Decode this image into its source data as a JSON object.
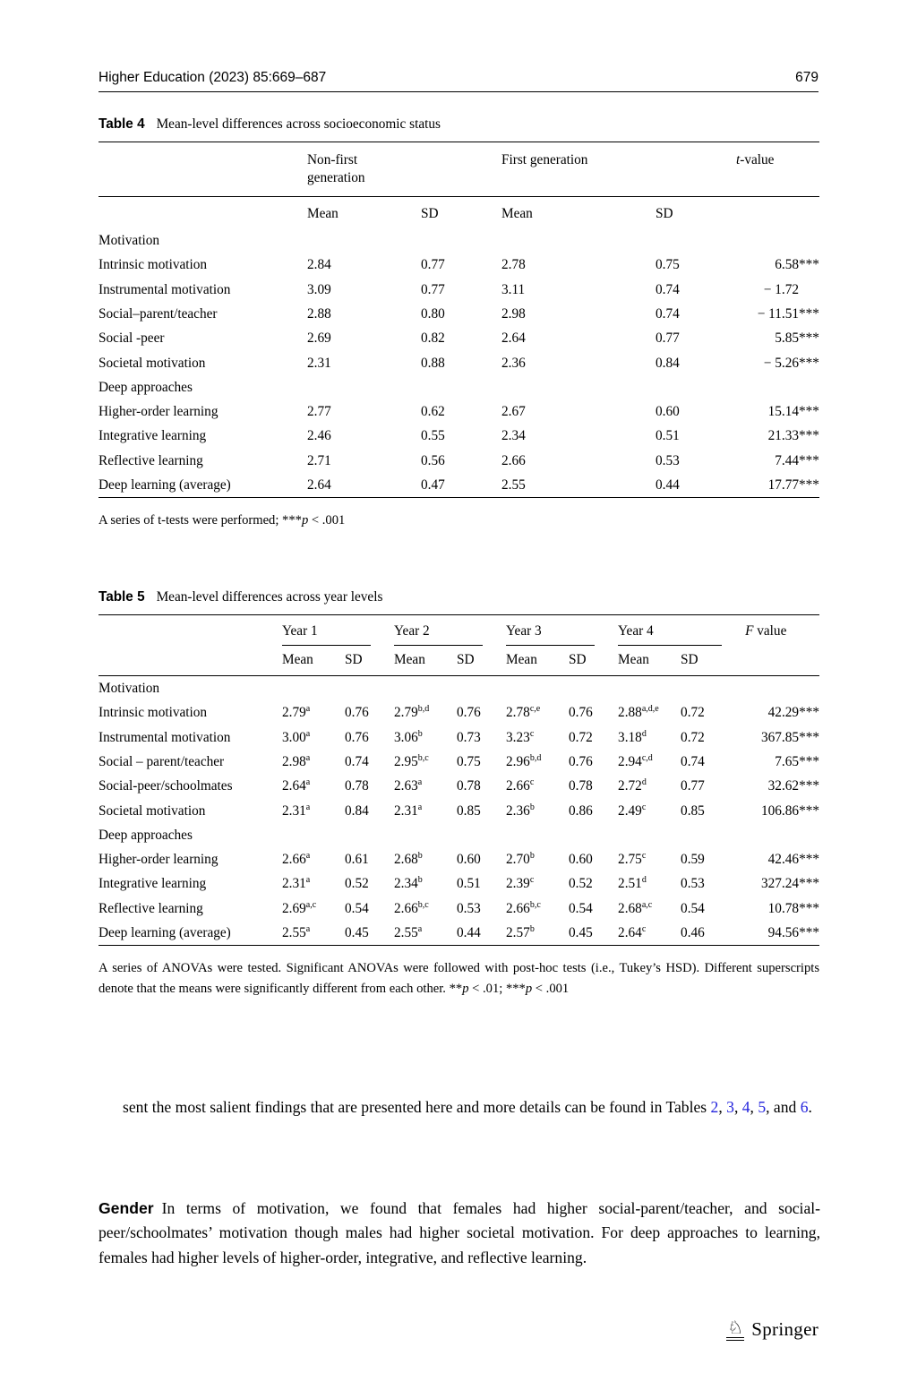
{
  "colors": {
    "link": "#2424dd",
    "text": "#000000"
  },
  "header": {
    "journal": "Higher Education (2023) 85:669–687",
    "page_number": "679"
  },
  "table4": {
    "caption_label": "Table 4",
    "caption_text": "Mean-level differences across socioeconomic status",
    "group_headers": [
      "Non-first generation",
      "First generation"
    ],
    "stat_header": {
      "italic": "t",
      "rest": "-value"
    },
    "sub_headers": [
      "Mean",
      "SD",
      "Mean",
      "SD"
    ],
    "rows": [
      {
        "group": true,
        "label": "Motivation"
      },
      {
        "label": "Intrinsic motivation",
        "cells": [
          "2.84",
          "0.77",
          "2.78",
          "0.75"
        ],
        "stat": "6.58***"
      },
      {
        "label": "Instrumental motivation",
        "cells": [
          "3.09",
          "0.77",
          "3.11",
          "0.74"
        ],
        "stat": "− 1.72"
      },
      {
        "label": "Social–parent/teacher",
        "cells": [
          "2.88",
          "0.80",
          "2.98",
          "0.74"
        ],
        "stat": "− 11.51***"
      },
      {
        "label": "Social -peer",
        "cells": [
          "2.69",
          "0.82",
          "2.64",
          "0.77"
        ],
        "stat": "5.85***"
      },
      {
        "label": "Societal motivation",
        "cells": [
          "2.31",
          "0.88",
          "2.36",
          "0.84"
        ],
        "stat": "− 5.26***"
      },
      {
        "group": true,
        "label": "Deep approaches"
      },
      {
        "label": "Higher-order learning",
        "cells": [
          "2.77",
          "0.62",
          "2.67",
          "0.60"
        ],
        "stat": "15.14***"
      },
      {
        "label": "Integrative learning",
        "cells": [
          "2.46",
          "0.55",
          "2.34",
          "0.51"
        ],
        "stat": "21.33***"
      },
      {
        "label": "Reflective learning",
        "cells": [
          "2.71",
          "0.56",
          "2.66",
          "0.53"
        ],
        "stat": "7.44***"
      },
      {
        "label": "Deep learning (average)",
        "cells": [
          "2.64",
          "0.47",
          "2.55",
          "0.44"
        ],
        "stat": "17.77***"
      }
    ],
    "note": [
      {
        "t": "A series of t-tests were performed; ***"
      },
      {
        "t": "p",
        "i": true
      },
      {
        "t": " < .001"
      }
    ]
  },
  "table5": {
    "caption_label": "Table 5",
    "caption_text": "Mean-level differences across year levels",
    "year_headers": [
      "Year 1",
      "Year 2",
      "Year 3",
      "Year 4"
    ],
    "stat_header": {
      "italic": "F",
      "rest": " value"
    },
    "sub_headers": [
      "Mean",
      "SD",
      "Mean",
      "SD",
      "Mean",
      "SD",
      "Mean",
      "SD"
    ],
    "rows": [
      {
        "group": true,
        "label": "Motivation"
      },
      {
        "label": "Intrinsic motivation",
        "cells": [
          "2.79^a",
          "0.76",
          "2.79^b,d",
          "0.76",
          "2.78^c,e",
          "0.76",
          "2.88^a,d,e",
          "0.72"
        ],
        "stat": "42.29***"
      },
      {
        "label": "Instrumental motivation",
        "cells": [
          "3.00^a",
          "0.76",
          "3.06^b",
          "0.73",
          "3.23^c",
          "0.72",
          "3.18^d",
          "0.72"
        ],
        "stat": "367.85***"
      },
      {
        "label": "Social – parent/teacher",
        "cells": [
          "2.98^a",
          "0.74",
          "2.95^b,c",
          "0.75",
          "2.96^b,d",
          "0.76",
          "2.94^c,d",
          "0.74"
        ],
        "stat": "7.65***"
      },
      {
        "label": "Social-peer/schoolmates",
        "cells": [
          "2.64^a",
          "0.78",
          "2.63^a",
          "0.78",
          "2.66^c",
          "0.78",
          "2.72^d",
          "0.77"
        ],
        "stat": "32.62***"
      },
      {
        "label": "Societal motivation",
        "cells": [
          "2.31^a",
          "0.84",
          "2.31^a",
          "0.85",
          "2.36^b",
          "0.86",
          "2.49^c",
          "0.85"
        ],
        "stat": "106.86***"
      },
      {
        "group": true,
        "label": "Deep approaches"
      },
      {
        "label": "Higher-order learning",
        "cells": [
          "2.66^a",
          "0.61",
          "2.68^b",
          "0.60",
          "2.70^b",
          "0.60",
          "2.75^c",
          "0.59"
        ],
        "stat": "42.46***"
      },
      {
        "label": "Integrative learning",
        "cells": [
          "2.31^a",
          "0.52",
          "2.34^b",
          "0.51",
          "2.39^c",
          "0.52",
          "2.51^d",
          "0.53"
        ],
        "stat": "327.24***"
      },
      {
        "label": "Reflective learning",
        "cells": [
          "2.69^a,c",
          "0.54",
          "2.66^b,c",
          "0.53",
          "2.66^b,c",
          "0.54",
          "2.68^a,c",
          "0.54"
        ],
        "stat": "10.78***"
      },
      {
        "label": "Deep learning (average)",
        "cells": [
          "2.55^a",
          "0.45",
          "2.55^a",
          "0.44",
          "2.57^b",
          "0.45",
          "2.64^c",
          "0.46"
        ],
        "stat": "94.56***"
      }
    ],
    "note": [
      {
        "t": "A series of ANOVAs were tested. Significant ANOVAs were followed with post-hoc tests (i.e., Tukey’s HSD). Different superscripts denote that the means were significantly different from each other. **"
      },
      {
        "t": "p",
        "i": true
      },
      {
        "t": " < .01; ***"
      },
      {
        "t": "p",
        "i": true
      },
      {
        "t": " < .001"
      }
    ]
  },
  "body_text": {
    "continuation": [
      {
        "t": "sent the most salient findings that are presented here and more details can be found in Tables "
      },
      {
        "t": "2",
        "link": true
      },
      {
        "t": ", "
      },
      {
        "t": "3",
        "link": true
      },
      {
        "t": ", "
      },
      {
        "t": "4",
        "link": true
      },
      {
        "t": ", "
      },
      {
        "t": "5",
        "link": true
      },
      {
        "t": ", and "
      },
      {
        "t": "6",
        "link": true
      },
      {
        "t": "."
      }
    ]
  },
  "gender": {
    "heading": "Gender",
    "text": "In terms of motivation, we found that females had higher social-parent/teacher, and social-peer/schoolmates’ motivation though males had higher societal motivation. For deep approaches to learning, females had higher levels of higher-order, integrative, and reflective learning."
  },
  "footer": {
    "publisher": "Springer",
    "logo_glyph": "♘"
  }
}
